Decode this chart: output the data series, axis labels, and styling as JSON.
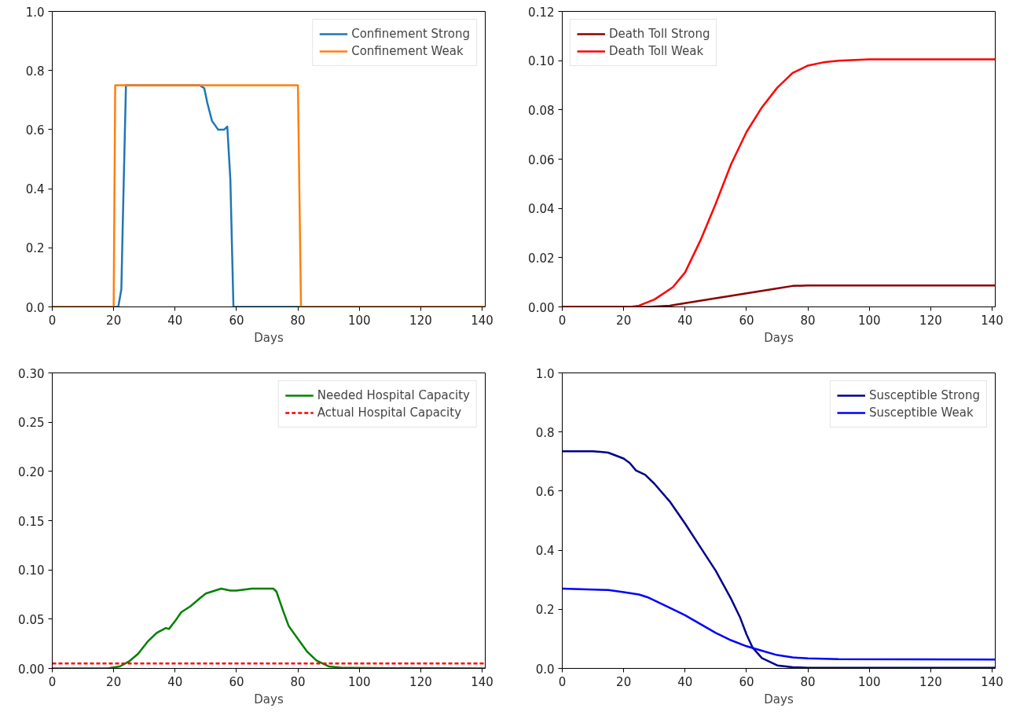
{
  "chart_data": [
    {
      "type": "line",
      "xlabel": "Days",
      "xlim": [
        0,
        141
      ],
      "xticks": [
        0,
        20,
        40,
        60,
        80,
        100,
        120,
        140
      ],
      "ylim": [
        0,
        1
      ],
      "yticks": [
        {
          "value": 0,
          "label": "0.0"
        },
        0.2,
        0.4,
        0.6,
        0.8,
        {
          "value": 1,
          "label": "1.0"
        }
      ],
      "grid": false,
      "legend": "top right",
      "series": [
        {
          "name": "Confinement Strong",
          "color": "#1f77b4",
          "x": [
            0,
            21.5,
            22.5,
            23,
            24,
            48,
            49.5,
            50.5,
            52,
            54,
            56,
            57,
            58,
            59,
            141
          ],
          "values": [
            0,
            0,
            0.06,
            0.3,
            0.75,
            0.75,
            0.74,
            0.69,
            0.63,
            0.6,
            0.6,
            0.61,
            0.43,
            0,
            0
          ]
        },
        {
          "name": "Confinement Weak",
          "color": "#ff7f0e",
          "x": [
            0,
            20,
            20.5,
            80,
            81,
            141
          ],
          "values": [
            0,
            0,
            0.75,
            0.75,
            0,
            0
          ]
        }
      ]
    },
    {
      "type": "line",
      "xlabel": "Days",
      "xlim": [
        0,
        141
      ],
      "xticks": [
        0,
        20,
        40,
        60,
        80,
        100,
        120,
        140
      ],
      "ylim": [
        0,
        0.12
      ],
      "yticks": [
        {
          "value": 0,
          "label": "0.00"
        },
        {
          "value": 0.02,
          "label": "0.02"
        },
        {
          "value": 0.04,
          "label": "0.04"
        },
        {
          "value": 0.06,
          "label": "0.06"
        },
        {
          "value": 0.08,
          "label": "0.08"
        },
        {
          "value": 0.1,
          "label": "0.10"
        },
        {
          "value": 0.12,
          "label": "0.12"
        }
      ],
      "grid": false,
      "legend": "top left",
      "series": [
        {
          "name": "Death Toll Strong",
          "color": "#8b0000",
          "x": [
            0,
            28,
            35,
            40,
            50,
            60,
            70,
            75,
            80,
            141
          ],
          "values": [
            0,
            0,
            0.0005,
            0.0015,
            0.0035,
            0.0055,
            0.0075,
            0.0085,
            0.0087,
            0.0087
          ]
        },
        {
          "name": "Death Toll Weak",
          "color": "#ff0000",
          "x": [
            0,
            22,
            25,
            30,
            36,
            40,
            45,
            50,
            55,
            60,
            65,
            70,
            75,
            80,
            85,
            90,
            100,
            141
          ],
          "values": [
            0,
            0,
            0.0005,
            0.003,
            0.008,
            0.014,
            0.027,
            0.042,
            0.058,
            0.071,
            0.081,
            0.089,
            0.095,
            0.098,
            0.0993,
            0.1,
            0.1005,
            0.1005
          ]
        }
      ]
    },
    {
      "type": "line",
      "xlabel": "Days",
      "xlim": [
        0,
        141
      ],
      "xticks": [
        0,
        20,
        40,
        60,
        80,
        100,
        120,
        140
      ],
      "ylim": [
        0,
        0.3
      ],
      "yticks": [
        {
          "value": 0,
          "label": "0.00"
        },
        0.05,
        {
          "value": 0.1,
          "label": "0.10"
        },
        0.15,
        {
          "value": 0.2,
          "label": "0.20"
        },
        0.25,
        {
          "value": 0.3,
          "label": "0.30"
        }
      ],
      "grid": false,
      "legend": "top right",
      "series": [
        {
          "name": "Needed Hospital Capacity",
          "color": "#008000",
          "x": [
            0,
            18,
            22,
            25,
            28,
            31,
            34,
            37,
            38,
            40,
            42,
            45,
            48,
            50,
            55,
            58,
            60,
            65,
            72,
            73,
            75,
            77,
            80,
            83,
            86,
            90,
            95,
            141
          ],
          "values": [
            0,
            0,
            0.002,
            0.007,
            0.015,
            0.027,
            0.036,
            0.041,
            0.04,
            0.048,
            0.057,
            0.063,
            0.071,
            0.076,
            0.081,
            0.079,
            0.079,
            0.081,
            0.081,
            0.078,
            0.06,
            0.043,
            0.03,
            0.017,
            0.008,
            0.002,
            0.0005,
            0
          ]
        },
        {
          "name": "Actual Hospital Capacity",
          "color": "#ff0000",
          "line_style": "dashed",
          "x": [
            0,
            141
          ],
          "values": [
            0.005,
            0.005
          ]
        }
      ]
    },
    {
      "type": "line",
      "xlabel": "Days",
      "xlim": [
        0,
        141
      ],
      "xticks": [
        0,
        20,
        40,
        60,
        80,
        100,
        120,
        140
      ],
      "ylim": [
        0,
        1
      ],
      "yticks": [
        {
          "value": 0,
          "label": "0.0"
        },
        0.2,
        0.4,
        0.6,
        0.8,
        {
          "value": 1,
          "label": "1.0"
        }
      ],
      "grid": false,
      "legend": "top right",
      "series": [
        {
          "name": "Susceptible Strong",
          "color": "#00008b",
          "x": [
            0,
            10,
            15,
            20,
            22,
            24,
            27,
            30,
            35,
            40,
            45,
            50,
            55,
            58,
            60,
            62,
            65,
            70,
            75,
            80,
            141
          ],
          "values": [
            0.735,
            0.735,
            0.73,
            0.71,
            0.695,
            0.67,
            0.655,
            0.625,
            0.565,
            0.49,
            0.41,
            0.33,
            0.235,
            0.17,
            0.115,
            0.07,
            0.035,
            0.01,
            0.004,
            0.002,
            0.002
          ]
        },
        {
          "name": "Susceptible Weak",
          "color": "#0000ff",
          "x": [
            0,
            15,
            20,
            25,
            28,
            35,
            40,
            45,
            50,
            55,
            60,
            65,
            70,
            75,
            80,
            90,
            141
          ],
          "values": [
            0.27,
            0.265,
            0.258,
            0.25,
            0.24,
            0.205,
            0.18,
            0.15,
            0.12,
            0.095,
            0.075,
            0.06,
            0.045,
            0.037,
            0.034,
            0.031,
            0.03
          ]
        }
      ]
    }
  ]
}
